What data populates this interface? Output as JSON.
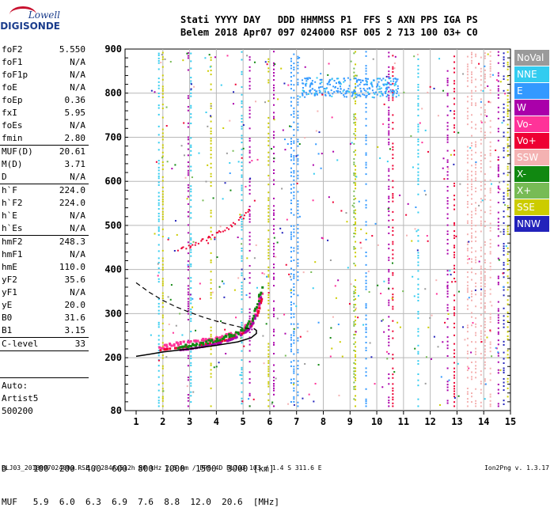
{
  "logo": {
    "line1": "Lowell",
    "line2": "DIGISONDE"
  },
  "header": {
    "line1": "Stati YYYY DAY   DDD HHMMSS P1  FFS S AXN PPS IGA PS",
    "line2": "Belem 2018 Apr07 097 024000 RSF 005 2 713 100 03+ C0"
  },
  "params": [
    {
      "k": "foF2",
      "v": "5.550",
      "sep": false
    },
    {
      "k": "foF1",
      "v": "N/A",
      "sep": false
    },
    {
      "k": "foF1p",
      "v": "N/A",
      "sep": false
    },
    {
      "k": "foE",
      "v": "N/A",
      "sep": false
    },
    {
      "k": "foEp",
      "v": "0.36",
      "sep": false
    },
    {
      "k": "fxI",
      "v": "5.95",
      "sep": false
    },
    {
      "k": "foEs",
      "v": "N/A",
      "sep": false
    },
    {
      "k": "fmin",
      "v": "2.80",
      "sep": true
    },
    {
      "k": "MUF(D)",
      "v": "20.61",
      "sep": false
    },
    {
      "k": "M(D)",
      "v": "3.71",
      "sep": false
    },
    {
      "k": "D",
      "v": "N/A",
      "sep": true
    },
    {
      "k": "h`F",
      "v": "224.0",
      "sep": false
    },
    {
      "k": "h`F2",
      "v": "224.0",
      "sep": false
    },
    {
      "k": "h`E",
      "v": "N/A",
      "sep": false
    },
    {
      "k": "h`Es",
      "v": "N/A",
      "sep": true
    },
    {
      "k": "hmF2",
      "v": "248.3",
      "sep": false
    },
    {
      "k": "hmF1",
      "v": "N/A",
      "sep": false
    },
    {
      "k": "hmE",
      "v": "110.0",
      "sep": false
    },
    {
      "k": "yF2",
      "v": "35.6",
      "sep": false
    },
    {
      "k": "yF1",
      "v": "N/A",
      "sep": false
    },
    {
      "k": "yE",
      "v": "20.0",
      "sep": false
    },
    {
      "k": "B0",
      "v": "31.6",
      "sep": false
    },
    {
      "k": "B1",
      "v": "3.15",
      "sep": true
    },
    {
      "k": "C-level",
      "v": "33",
      "sep": true
    }
  ],
  "auto": {
    "l1": "Auto:",
    "l2": "Artist5",
    "l3": "500200"
  },
  "legend": [
    {
      "label": "NoVal",
      "color": "#9a9a9a"
    },
    {
      "label": "NNE",
      "color": "#33ccf0"
    },
    {
      "label": "E",
      "color": "#3399ff"
    },
    {
      "label": "W",
      "color": "#aa00aa"
    },
    {
      "label": "Vo-",
      "color": "#ff3399"
    },
    {
      "label": "Vo+",
      "color": "#ee0033"
    },
    {
      "label": "SSW",
      "color": "#f4b2b2"
    },
    {
      "label": "X-",
      "color": "#118811"
    },
    {
      "label": "X+",
      "color": "#77bb55"
    },
    {
      "label": "SSE",
      "color": "#cccc00"
    },
    {
      "label": "NNW",
      "color": "#2222bb"
    }
  ],
  "muf_table": {
    "row1": "D     100  200  400  600  800  1000  1500  3000 [km]",
    "row2": "MUF   5.9  6.0  6.3  6.9  7.6  8.8  12.0  20.6  [MHz]"
  },
  "footer": "BLJ03_2018097024000.RSF / 284fx512h 50 kHz 2.5 km / DPS-4D BLJ03 103 / 1.4 S 311.6 E",
  "footer_right": "Ion2Png v. 1.3.17",
  "chart_data": {
    "type": "scatter",
    "x_ticks": [
      "1",
      "2",
      "3",
      "4",
      "5",
      "6",
      "7",
      "8",
      "9",
      "10",
      "11",
      "12",
      "13",
      "14",
      "15"
    ],
    "y_ticks": [
      "80",
      "200",
      "300",
      "400",
      "500",
      "600",
      "700",
      "800",
      "900"
    ],
    "xlim": [
      1,
      15
    ],
    "ylim": [
      80,
      900
    ],
    "grid": true,
    "legend_position": "right",
    "profile_solid": [
      [
        1.0,
        203
      ],
      [
        1.5,
        208
      ],
      [
        2.0,
        213
      ],
      [
        3.0,
        220
      ],
      [
        4.0,
        228
      ],
      [
        4.8,
        236
      ],
      [
        5.3,
        245
      ],
      [
        5.5,
        255
      ],
      [
        5.5,
        262
      ],
      [
        5.4,
        266
      ]
    ],
    "profile_dashed": [
      [
        1.0,
        370
      ],
      [
        1.5,
        348
      ],
      [
        2.0,
        330
      ],
      [
        2.5,
        315
      ],
      [
        3.0,
        303
      ],
      [
        3.5,
        292
      ],
      [
        4.0,
        283
      ],
      [
        4.5,
        275
      ],
      [
        5.0,
        268
      ],
      [
        5.3,
        265
      ]
    ],
    "traces": [
      {
        "name": "o-trace",
        "color": "#ff3399",
        "points": [
          [
            1.9,
            225
          ],
          [
            2.2,
            228
          ],
          [
            2.5,
            230
          ],
          [
            2.8,
            232
          ],
          [
            3.1,
            235
          ],
          [
            3.4,
            237
          ],
          [
            3.7,
            240
          ],
          [
            4.0,
            243
          ],
          [
            4.3,
            247
          ],
          [
            4.6,
            252
          ],
          [
            4.9,
            260
          ],
          [
            5.1,
            268
          ],
          [
            5.3,
            280
          ],
          [
            5.5,
            300
          ],
          [
            5.6,
            320
          ],
          [
            5.7,
            345
          ]
        ]
      },
      {
        "name": "x-trace",
        "color": "#118811",
        "points": [
          [
            2.6,
            225
          ],
          [
            2.9,
            227
          ],
          [
            3.2,
            230
          ],
          [
            3.5,
            233
          ],
          [
            3.8,
            237
          ],
          [
            4.1,
            241
          ],
          [
            4.4,
            246
          ],
          [
            4.7,
            253
          ],
          [
            5.0,
            262
          ],
          [
            5.2,
            272
          ],
          [
            5.4,
            290
          ],
          [
            5.6,
            330
          ],
          [
            5.7,
            360
          ]
        ]
      },
      {
        "name": "F2-multiple",
        "color": "#ee0033",
        "points": [
          [
            2.6,
            445
          ],
          [
            3.0,
            452
          ],
          [
            3.4,
            462
          ],
          [
            3.8,
            473
          ],
          [
            4.2,
            485
          ],
          [
            4.6,
            500
          ],
          [
            5.0,
            520
          ],
          [
            5.3,
            540
          ]
        ]
      }
    ]
  }
}
